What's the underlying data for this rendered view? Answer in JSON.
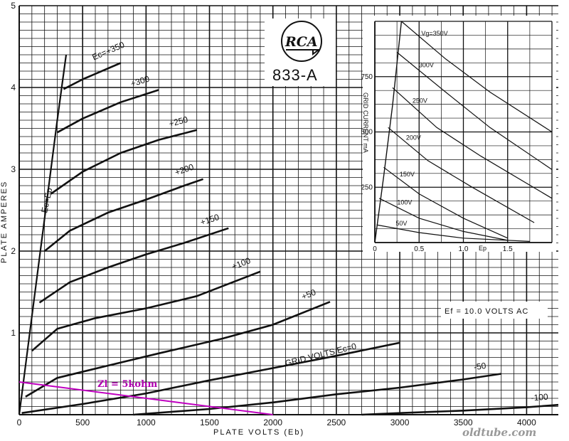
{
  "chart_data": [
    {
      "type": "line",
      "tube": "833-A",
      "brand": "RCA",
      "xlabel": "PLATE VOLTS (Eb)",
      "ylabel": "PLATE AMPERES",
      "xlim": [
        0,
        4250
      ],
      "ylim": [
        0,
        5
      ],
      "x_ticks": [
        0,
        500,
        1000,
        1500,
        2000,
        2500,
        3000,
        3500,
        4000
      ],
      "y_ticks": [
        1,
        2,
        3,
        4,
        5
      ],
      "grid": true,
      "filament_note": "Ef = 10.0 VOLTS AC",
      "grid_volts_label": "GRID VOLTS Ec=0",
      "ec_ep_label": "Ec=Ep",
      "ec_ep_line": {
        "x": [
          0,
          100,
          200,
          300,
          370
        ],
        "y": [
          0,
          1.2,
          2.4,
          3.6,
          4.4
        ]
      },
      "load_line": {
        "label": "Zl = 5kohm",
        "color": "#c000c0",
        "x": [
          0,
          2000
        ],
        "y": [
          0.4,
          0
        ]
      },
      "series": [
        {
          "name": "",
          "label": "Ec=+350",
          "x": [
            350,
            500,
            800
          ],
          "y": [
            3.98,
            4.1,
            4.3
          ]
        },
        {
          "name": "",
          "label": "+300",
          "x": [
            300,
            500,
            800,
            1100
          ],
          "y": [
            3.45,
            3.62,
            3.82,
            3.97
          ]
        },
        {
          "name": "",
          "label": "+250",
          "x": [
            250,
            500,
            800,
            1100,
            1400
          ],
          "y": [
            2.7,
            2.97,
            3.2,
            3.36,
            3.48
          ]
        },
        {
          "name": "",
          "label": "+200",
          "x": [
            200,
            400,
            700,
            1000,
            1300,
            1450
          ],
          "y": [
            2.0,
            2.25,
            2.47,
            2.63,
            2.8,
            2.88
          ]
        },
        {
          "name": "",
          "label": "+150",
          "x": [
            160,
            400,
            700,
            1000,
            1300,
            1650
          ],
          "y": [
            1.37,
            1.62,
            1.8,
            1.96,
            2.1,
            2.28
          ]
        },
        {
          "name": "",
          "label": "+100",
          "x": [
            100,
            300,
            600,
            1000,
            1400,
            1900
          ],
          "y": [
            0.78,
            1.05,
            1.18,
            1.3,
            1.45,
            1.75
          ]
        },
        {
          "name": "",
          "label": "+50",
          "x": [
            50,
            300,
            700,
            1100,
            1600,
            2000,
            2450
          ],
          "y": [
            0.22,
            0.45,
            0.6,
            0.75,
            0.93,
            1.1,
            1.38
          ]
        },
        {
          "name": "",
          "label": "Ec=0",
          "x": [
            20,
            500,
            1000,
            1500,
            2000,
            2500,
            3000
          ],
          "y": [
            0.02,
            0.13,
            0.26,
            0.42,
            0.57,
            0.72,
            0.88
          ]
        },
        {
          "name": "",
          "label": "-50",
          "x": [
            900,
            1500,
            2000,
            2500,
            3000,
            3500,
            3800
          ],
          "y": [
            0.0,
            0.07,
            0.15,
            0.25,
            0.33,
            0.43,
            0.5
          ]
        },
        {
          "name": "",
          "label": "-100",
          "x": [
            2700,
            3000,
            3500,
            4000,
            4250
          ],
          "y": [
            0.0,
            0.02,
            0.05,
            0.09,
            0.12
          ]
        }
      ]
    },
    {
      "type": "line",
      "inset": true,
      "xlabel": "Ep",
      "ylabel": "GRID CURRENT mA",
      "xlim": [
        0,
        2.0
      ],
      "ylim": [
        0,
        1000
      ],
      "x_ticks": [
        0,
        0.5,
        1.0,
        1.5
      ],
      "x_tick_labels": [
        "0",
        "0.5",
        "1.0",
        "1.5"
      ],
      "y_ticks": [
        0,
        250,
        500,
        750
      ],
      "grid": true,
      "envelope": {
        "x": [
          0,
          0.1,
          0.2,
          0.3
        ],
        "y": [
          0,
          300,
          620,
          1000
        ]
      },
      "series": [
        {
          "name": "",
          "label": "Vg=350V",
          "x": [
            0.3,
            0.8,
            1.3,
            2.0
          ],
          "y": [
            1000,
            830,
            680,
            500
          ]
        },
        {
          "name": "",
          "label": "300V",
          "x": [
            0.25,
            0.8,
            1.3,
            2.0
          ],
          "y": [
            860,
            680,
            520,
            330
          ]
        },
        {
          "name": "",
          "label": "250V",
          "x": [
            0.2,
            0.7,
            1.2,
            2.0
          ],
          "y": [
            700,
            520,
            390,
            200
          ]
        },
        {
          "name": "",
          "label": "200V",
          "x": [
            0.15,
            0.6,
            1.1,
            1.8
          ],
          "y": [
            520,
            370,
            250,
            90
          ]
        },
        {
          "name": "",
          "label": "150V",
          "x": [
            0.1,
            0.5,
            1.0,
            1.5
          ],
          "y": [
            340,
            220,
            110,
            20
          ]
        },
        {
          "name": "",
          "label": "100V",
          "x": [
            0.05,
            0.5,
            1.0,
            1.5
          ],
          "y": [
            200,
            110,
            50,
            10
          ]
        },
        {
          "name": "",
          "label": "50V",
          "x": [
            0.02,
            0.5,
            1.0,
            1.75
          ],
          "y": [
            80,
            45,
            20,
            5
          ]
        }
      ]
    }
  ],
  "watermark": "oldtube.com"
}
